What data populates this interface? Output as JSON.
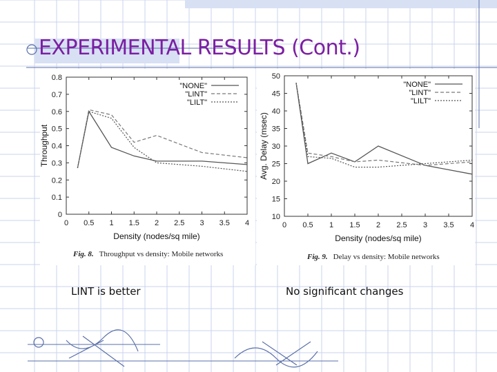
{
  "slide": {
    "title": "EXPERIMENTAL RESULTS (Cont.)",
    "notes": [
      "LINT is better",
      "No significant changes"
    ],
    "accent_color": "#7B1FA2",
    "grid_color": "#C9D3EE"
  },
  "chart_data": [
    {
      "type": "line",
      "caption_label": "Fig. 8.",
      "caption_text": "Throughput vs density: Mobile networks",
      "xlabel": "Density (nodes/sq mile)",
      "ylabel": "Throughput",
      "x": [
        0.25,
        0.5,
        1,
        1.5,
        2,
        3,
        4
      ],
      "xlim": [
        0,
        4
      ],
      "ylim": [
        0,
        0.8
      ],
      "xticks": [
        0,
        0.5,
        1,
        1.5,
        2,
        2.5,
        3,
        3.5,
        4
      ],
      "yticks": [
        0,
        0.1,
        0.2,
        0.3,
        0.4,
        0.5,
        0.6,
        0.7,
        0.8
      ],
      "grid": false,
      "legend_position": "top-right",
      "series": [
        {
          "name": "\"NONE\"",
          "values": [
            0.27,
            0.6,
            0.39,
            0.34,
            0.31,
            0.31,
            0.29
          ]
        },
        {
          "name": "\"LINT\"",
          "values": [
            0.27,
            0.61,
            0.58,
            0.42,
            0.46,
            0.36,
            0.33
          ]
        },
        {
          "name": "\"LILT\"",
          "values": [
            0.27,
            0.6,
            0.56,
            0.39,
            0.3,
            0.28,
            0.25
          ]
        }
      ]
    },
    {
      "type": "line",
      "caption_label": "Fig. 9.",
      "caption_text": "Delay vs density: Mobile networks",
      "xlabel": "Density (nodes/sq mile)",
      "ylabel": "Avg. Delay (msec)",
      "x": [
        0.25,
        0.5,
        1,
        1.5,
        2,
        3,
        4
      ],
      "xlim": [
        0,
        4
      ],
      "ylim": [
        10,
        50
      ],
      "xticks": [
        0,
        0.5,
        1,
        1.5,
        2,
        2.5,
        3,
        3.5,
        4
      ],
      "yticks": [
        10,
        15,
        20,
        25,
        30,
        35,
        40,
        45,
        50
      ],
      "grid": false,
      "legend_position": "top-right",
      "series": [
        {
          "name": "\"NONE\"",
          "values": [
            48,
            25,
            28,
            25.5,
            30,
            24.5,
            22
          ]
        },
        {
          "name": "\"LINT\"",
          "values": [
            48,
            28,
            27,
            25.5,
            26,
            24.5,
            25.5
          ]
        },
        {
          "name": "\"LILT\"",
          "values": [
            48,
            27,
            26.5,
            24,
            24,
            25,
            26
          ]
        }
      ]
    }
  ]
}
